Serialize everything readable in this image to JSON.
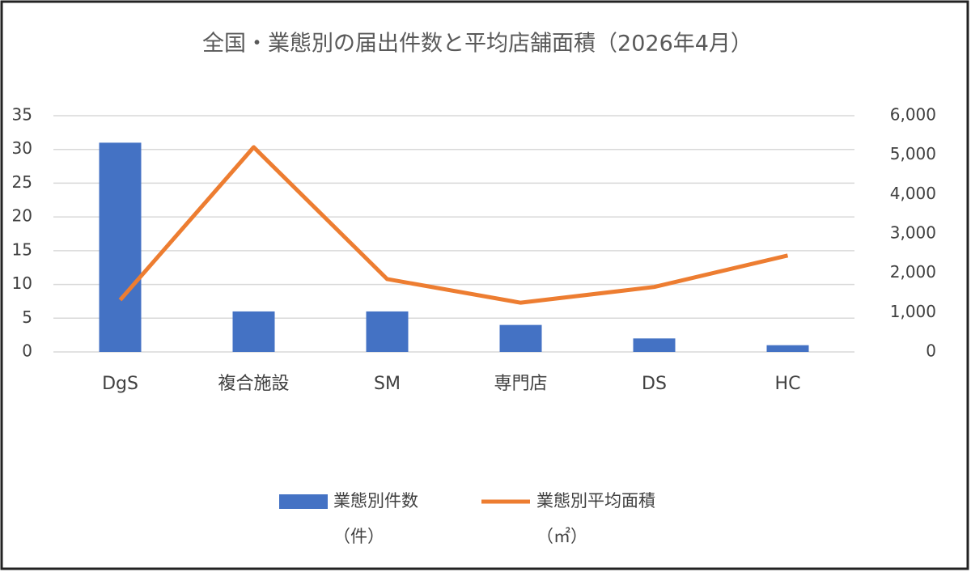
{
  "chart_data": {
    "type": "bar_line",
    "title": "全国・業態別の届出件数と平均店舗面積（2026年4月）",
    "categories": [
      "DgS",
      "複合施設",
      "SM",
      "専門店",
      "DS",
      "HC"
    ],
    "series": [
      {
        "name": "業態別件数（件）",
        "type": "bar",
        "color": "#4472c4",
        "values": [
          31,
          6,
          6,
          4,
          2,
          1
        ]
      },
      {
        "name": "業態別平均面積（㎡）",
        "type": "line",
        "axis": "y2",
        "color": "#ed7d31",
        "values": [
          1320,
          5200,
          1850,
          1250,
          1650,
          2450
        ]
      }
    ],
    "ylim": [
      0,
      35
    ],
    "yticks": [
      0,
      5,
      10,
      15,
      20,
      25,
      30,
      35
    ],
    "y2lim": [
      0,
      6000
    ],
    "y2ticks": [
      0,
      {
        "value": 1000,
        "label": "1,000"
      },
      {
        "value": 2000,
        "label": "2,000"
      },
      {
        "value": 3000,
        "label": "3,000"
      },
      {
        "value": 4000,
        "label": "4,000"
      },
      {
        "value": 5000,
        "label": "5,000"
      },
      {
        "value": 6000,
        "label": "6,000"
      }
    ],
    "grid": true,
    "legend": "bottom"
  }
}
